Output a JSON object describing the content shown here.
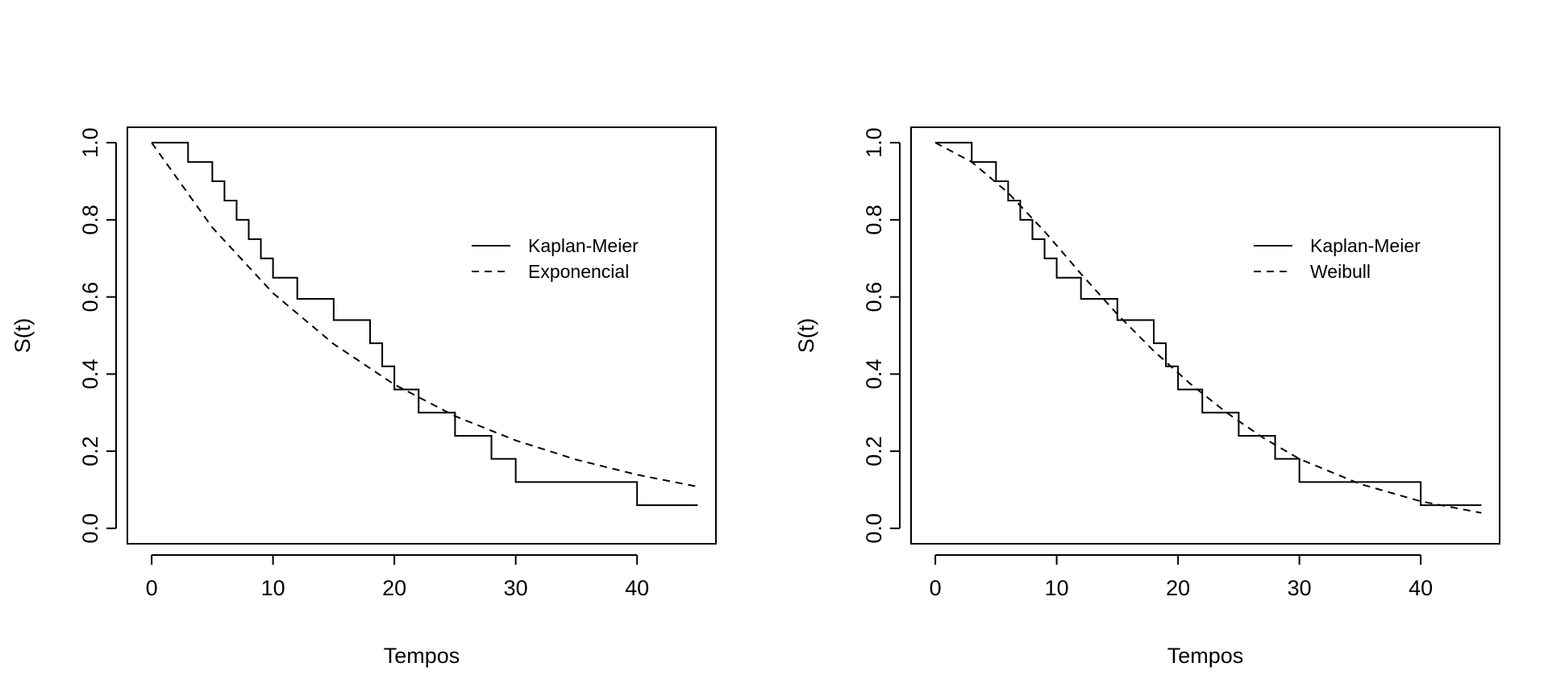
{
  "chart_data": [
    {
      "type": "line",
      "xlabel": "Tempos",
      "ylabel": "S(t)",
      "xlim": [
        -2,
        46.5
      ],
      "ylim": [
        -0.04,
        1.04
      ],
      "xticks": [
        0,
        10,
        20,
        30,
        40
      ],
      "yticks": [
        0.0,
        0.2,
        0.4,
        0.6,
        0.8,
        1.0
      ],
      "xtick_labels": [
        "0",
        "10",
        "20",
        "30",
        "40"
      ],
      "ytick_labels": [
        "0.0",
        "0.2",
        "0.4",
        "0.6",
        "0.8",
        "1.0"
      ],
      "grid": false,
      "legend": {
        "position": "top-right",
        "entries": [
          "Kaplan-Meier",
          "Exponencial"
        ]
      },
      "series": [
        {
          "name": "Kaplan-Meier",
          "style": "step",
          "x": [
            0,
            3,
            5,
            6,
            7,
            8,
            9,
            10,
            12,
            15,
            18,
            19,
            20,
            22,
            25,
            28,
            30,
            40,
            45
          ],
          "y": [
            1.0,
            0.95,
            0.9,
            0.85,
            0.8,
            0.75,
            0.7,
            0.65,
            0.595,
            0.54,
            0.48,
            0.42,
            0.36,
            0.3,
            0.24,
            0.18,
            0.12,
            0.06,
            0.06
          ]
        },
        {
          "name": "Exponencial",
          "style": "dashed",
          "x": [
            0,
            5,
            10,
            15,
            20,
            25,
            30,
            35,
            40,
            45
          ],
          "y": [
            1.0,
            0.78,
            0.61,
            0.478,
            0.373,
            0.291,
            0.228,
            0.178,
            0.139,
            0.108
          ]
        }
      ]
    },
    {
      "type": "line",
      "xlabel": "Tempos",
      "ylabel": "S(t)",
      "xlim": [
        -2,
        46.5
      ],
      "ylim": [
        -0.04,
        1.04
      ],
      "xticks": [
        0,
        10,
        20,
        30,
        40
      ],
      "yticks": [
        0.0,
        0.2,
        0.4,
        0.6,
        0.8,
        1.0
      ],
      "xtick_labels": [
        "0",
        "10",
        "20",
        "30",
        "40"
      ],
      "ytick_labels": [
        "0.0",
        "0.2",
        "0.4",
        "0.6",
        "0.8",
        "1.0"
      ],
      "grid": false,
      "legend": {
        "position": "top-right",
        "entries": [
          "Kaplan-Meier",
          "Weibull"
        ]
      },
      "series": [
        {
          "name": "Kaplan-Meier",
          "style": "step",
          "x": [
            0,
            3,
            5,
            6,
            7,
            8,
            9,
            10,
            12,
            15,
            18,
            19,
            20,
            22,
            25,
            28,
            30,
            40,
            45
          ],
          "y": [
            1.0,
            0.95,
            0.9,
            0.85,
            0.8,
            0.75,
            0.7,
            0.65,
            0.595,
            0.54,
            0.48,
            0.42,
            0.36,
            0.3,
            0.24,
            0.18,
            0.12,
            0.06,
            0.06
          ]
        },
        {
          "name": "Weibull",
          "style": "dashed",
          "x": [
            0,
            3,
            6,
            9,
            12,
            15,
            18,
            21,
            24,
            27,
            30,
            35,
            40,
            45
          ],
          "y": [
            1.0,
            0.95,
            0.87,
            0.77,
            0.66,
            0.555,
            0.46,
            0.375,
            0.3,
            0.235,
            0.18,
            0.115,
            0.07,
            0.04
          ]
        }
      ]
    }
  ]
}
